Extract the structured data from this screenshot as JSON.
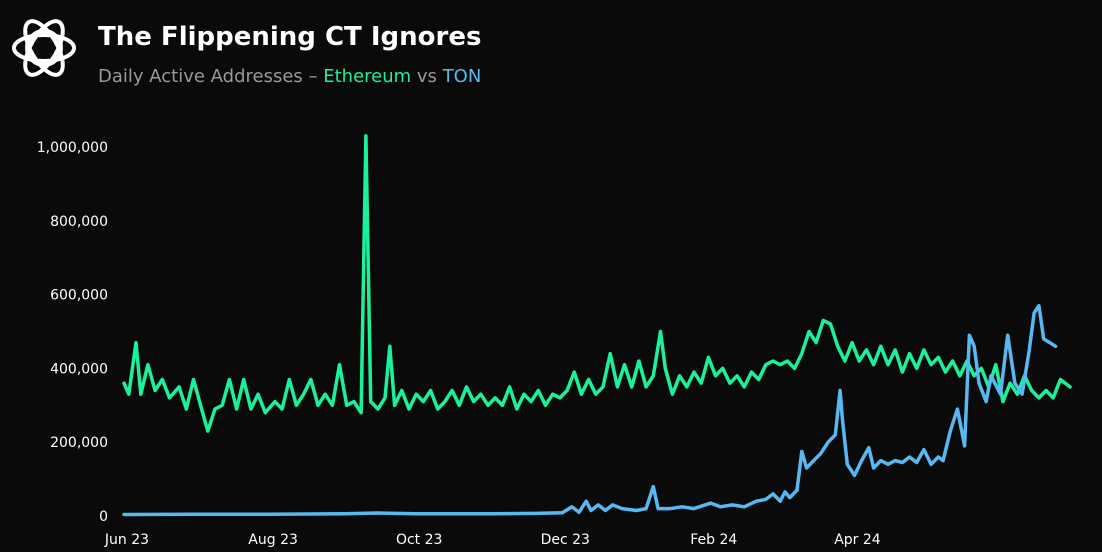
{
  "header": {
    "title": "The Flippening CT Ignores",
    "subtitle_prefix": "Daily Active Addresses – ",
    "subtitle_series_a": "Ethereum",
    "subtitle_mid": " vs ",
    "subtitle_series_b": "TON"
  },
  "colors": {
    "background": "#0a0a0a",
    "ethereum": "#19f29a",
    "ton": "#58b9f2",
    "subtitle_gray": "#9a9a9a",
    "text": "#ffffff"
  },
  "icons": {
    "logo": "knot-logo-icon"
  },
  "chart_data": {
    "type": "line",
    "title": "The Flippening CT Ignores",
    "subtitle": "Daily Active Addresses – Ethereum vs TON",
    "xlabel": "",
    "ylabel": "",
    "x_range": [
      "2023-06-01",
      "2024-06-30"
    ],
    "ylim": [
      0,
      1000000
    ],
    "y_ticks": [
      0,
      200000,
      400000,
      600000,
      800000,
      1000000
    ],
    "y_tick_labels": [
      "0",
      "200,000",
      "400,000",
      "600,000",
      "800,000",
      "1,000,000"
    ],
    "x_ticks": [
      "2023-06-01",
      "2023-08-01",
      "2023-10-01",
      "2023-12-01",
      "2024-02-01",
      "2024-04-01"
    ],
    "x_tick_labels": [
      "Jun 23",
      "Aug 23",
      "Oct 23",
      "Dec 23",
      "Feb 24",
      "Apr 24"
    ],
    "grid": false,
    "legend": "none",
    "series": [
      {
        "name": "Ethereum",
        "color": "#19f29a",
        "points": [
          [
            "2023-06-01",
            360000
          ],
          [
            "2023-06-03",
            330000
          ],
          [
            "2023-06-06",
            470000
          ],
          [
            "2023-06-08",
            330000
          ],
          [
            "2023-06-11",
            410000
          ],
          [
            "2023-06-14",
            340000
          ],
          [
            "2023-06-17",
            370000
          ],
          [
            "2023-06-20",
            320000
          ],
          [
            "2023-06-24",
            350000
          ],
          [
            "2023-06-27",
            290000
          ],
          [
            "2023-06-30",
            370000
          ],
          [
            "2023-07-03",
            300000
          ],
          [
            "2023-07-06",
            230000
          ],
          [
            "2023-07-09",
            290000
          ],
          [
            "2023-07-12",
            300000
          ],
          [
            "2023-07-15",
            370000
          ],
          [
            "2023-07-18",
            290000
          ],
          [
            "2023-07-21",
            370000
          ],
          [
            "2023-07-24",
            290000
          ],
          [
            "2023-07-27",
            330000
          ],
          [
            "2023-07-30",
            280000
          ],
          [
            "2023-08-03",
            310000
          ],
          [
            "2023-08-06",
            290000
          ],
          [
            "2023-08-09",
            370000
          ],
          [
            "2023-08-12",
            300000
          ],
          [
            "2023-08-15",
            330000
          ],
          [
            "2023-08-18",
            370000
          ],
          [
            "2023-08-21",
            300000
          ],
          [
            "2023-08-24",
            330000
          ],
          [
            "2023-08-27",
            300000
          ],
          [
            "2023-08-30",
            410000
          ],
          [
            "2023-09-02",
            300000
          ],
          [
            "2023-09-05",
            310000
          ],
          [
            "2023-09-08",
            280000
          ],
          [
            "2023-09-10",
            1030000
          ],
          [
            "2023-09-12",
            310000
          ],
          [
            "2023-09-15",
            290000
          ],
          [
            "2023-09-18",
            320000
          ],
          [
            "2023-09-20",
            460000
          ],
          [
            "2023-09-22",
            300000
          ],
          [
            "2023-09-25",
            340000
          ],
          [
            "2023-09-28",
            290000
          ],
          [
            "2023-10-01",
            330000
          ],
          [
            "2023-10-04",
            310000
          ],
          [
            "2023-10-07",
            340000
          ],
          [
            "2023-10-10",
            290000
          ],
          [
            "2023-10-13",
            310000
          ],
          [
            "2023-10-16",
            340000
          ],
          [
            "2023-10-19",
            300000
          ],
          [
            "2023-10-22",
            350000
          ],
          [
            "2023-10-25",
            310000
          ],
          [
            "2023-10-28",
            330000
          ],
          [
            "2023-10-31",
            300000
          ],
          [
            "2023-11-03",
            320000
          ],
          [
            "2023-11-06",
            300000
          ],
          [
            "2023-11-09",
            350000
          ],
          [
            "2023-11-12",
            290000
          ],
          [
            "2023-11-15",
            330000
          ],
          [
            "2023-11-18",
            310000
          ],
          [
            "2023-11-21",
            340000
          ],
          [
            "2023-11-24",
            300000
          ],
          [
            "2023-11-27",
            330000
          ],
          [
            "2023-11-30",
            320000
          ],
          [
            "2023-12-03",
            340000
          ],
          [
            "2023-12-06",
            390000
          ],
          [
            "2023-12-09",
            330000
          ],
          [
            "2023-12-12",
            370000
          ],
          [
            "2023-12-15",
            330000
          ],
          [
            "2023-12-18",
            350000
          ],
          [
            "2023-12-21",
            440000
          ],
          [
            "2023-12-24",
            350000
          ],
          [
            "2023-12-27",
            410000
          ],
          [
            "2023-12-30",
            350000
          ],
          [
            "2024-01-02",
            420000
          ],
          [
            "2024-01-05",
            350000
          ],
          [
            "2024-01-08",
            380000
          ],
          [
            "2024-01-11",
            500000
          ],
          [
            "2024-01-13",
            400000
          ],
          [
            "2024-01-16",
            330000
          ],
          [
            "2024-01-19",
            380000
          ],
          [
            "2024-01-22",
            350000
          ],
          [
            "2024-01-25",
            390000
          ],
          [
            "2024-01-28",
            360000
          ],
          [
            "2024-01-31",
            430000
          ],
          [
            "2024-02-03",
            380000
          ],
          [
            "2024-02-06",
            400000
          ],
          [
            "2024-02-09",
            360000
          ],
          [
            "2024-02-12",
            380000
          ],
          [
            "2024-02-15",
            350000
          ],
          [
            "2024-02-18",
            390000
          ],
          [
            "2024-02-21",
            370000
          ],
          [
            "2024-02-24",
            410000
          ],
          [
            "2024-02-27",
            420000
          ],
          [
            "2024-03-01",
            410000
          ],
          [
            "2024-03-04",
            420000
          ],
          [
            "2024-03-07",
            400000
          ],
          [
            "2024-03-10",
            440000
          ],
          [
            "2024-03-13",
            500000
          ],
          [
            "2024-03-16",
            470000
          ],
          [
            "2024-03-19",
            530000
          ],
          [
            "2024-03-22",
            520000
          ],
          [
            "2024-03-25",
            460000
          ],
          [
            "2024-03-28",
            420000
          ],
          [
            "2024-03-31",
            470000
          ],
          [
            "2024-04-03",
            420000
          ],
          [
            "2024-04-06",
            450000
          ],
          [
            "2024-04-09",
            410000
          ],
          [
            "2024-04-12",
            460000
          ],
          [
            "2024-04-15",
            410000
          ],
          [
            "2024-04-18",
            450000
          ],
          [
            "2024-04-21",
            390000
          ],
          [
            "2024-04-24",
            440000
          ],
          [
            "2024-04-27",
            400000
          ],
          [
            "2024-04-30",
            450000
          ],
          [
            "2024-05-03",
            410000
          ],
          [
            "2024-05-06",
            430000
          ],
          [
            "2024-05-09",
            390000
          ],
          [
            "2024-05-12",
            420000
          ],
          [
            "2024-05-15",
            380000
          ],
          [
            "2024-05-18",
            420000
          ],
          [
            "2024-05-21",
            380000
          ],
          [
            "2024-05-24",
            400000
          ],
          [
            "2024-05-27",
            350000
          ],
          [
            "2024-05-30",
            410000
          ],
          [
            "2024-06-02",
            310000
          ],
          [
            "2024-06-05",
            360000
          ],
          [
            "2024-06-08",
            330000
          ],
          [
            "2024-06-11",
            380000
          ],
          [
            "2024-06-14",
            340000
          ],
          [
            "2024-06-17",
            320000
          ],
          [
            "2024-06-20",
            340000
          ],
          [
            "2024-06-23",
            320000
          ],
          [
            "2024-06-26",
            370000
          ],
          [
            "2024-06-30",
            350000
          ]
        ]
      },
      {
        "name": "TON",
        "color": "#58b9f2",
        "points": [
          [
            "2023-06-01",
            4000
          ],
          [
            "2023-07-01",
            5000
          ],
          [
            "2023-08-01",
            5000
          ],
          [
            "2023-09-01",
            6000
          ],
          [
            "2023-09-15",
            8000
          ],
          [
            "2023-10-01",
            6000
          ],
          [
            "2023-11-01",
            6000
          ],
          [
            "2023-11-20",
            7000
          ],
          [
            "2023-12-01",
            9000
          ],
          [
            "2023-12-05",
            25000
          ],
          [
            "2023-12-08",
            10000
          ],
          [
            "2023-12-11",
            40000
          ],
          [
            "2023-12-13",
            15000
          ],
          [
            "2023-12-16",
            30000
          ],
          [
            "2023-12-19",
            15000
          ],
          [
            "2023-12-22",
            30000
          ],
          [
            "2023-12-26",
            20000
          ],
          [
            "2024-01-01",
            15000
          ],
          [
            "2024-01-05",
            20000
          ],
          [
            "2024-01-08",
            80000
          ],
          [
            "2024-01-10",
            20000
          ],
          [
            "2024-01-15",
            20000
          ],
          [
            "2024-01-20",
            25000
          ],
          [
            "2024-01-25",
            20000
          ],
          [
            "2024-02-01",
            35000
          ],
          [
            "2024-02-05",
            25000
          ],
          [
            "2024-02-10",
            30000
          ],
          [
            "2024-02-15",
            25000
          ],
          [
            "2024-02-20",
            40000
          ],
          [
            "2024-02-24",
            45000
          ],
          [
            "2024-02-27",
            60000
          ],
          [
            "2024-03-01",
            40000
          ],
          [
            "2024-03-03",
            65000
          ],
          [
            "2024-03-05",
            50000
          ],
          [
            "2024-03-08",
            70000
          ],
          [
            "2024-03-10",
            175000
          ],
          [
            "2024-03-12",
            130000
          ],
          [
            "2024-03-15",
            150000
          ],
          [
            "2024-03-18",
            170000
          ],
          [
            "2024-03-21",
            200000
          ],
          [
            "2024-03-24",
            220000
          ],
          [
            "2024-03-26",
            340000
          ],
          [
            "2024-03-27",
            260000
          ],
          [
            "2024-03-29",
            140000
          ],
          [
            "2024-04-01",
            110000
          ],
          [
            "2024-04-04",
            150000
          ],
          [
            "2024-04-07",
            185000
          ],
          [
            "2024-04-09",
            130000
          ],
          [
            "2024-04-12",
            150000
          ],
          [
            "2024-04-15",
            140000
          ],
          [
            "2024-04-18",
            150000
          ],
          [
            "2024-04-21",
            145000
          ],
          [
            "2024-04-24",
            160000
          ],
          [
            "2024-04-27",
            145000
          ],
          [
            "2024-04-30",
            180000
          ],
          [
            "2024-05-03",
            140000
          ],
          [
            "2024-05-06",
            160000
          ],
          [
            "2024-05-08",
            150000
          ],
          [
            "2024-05-11",
            230000
          ],
          [
            "2024-05-14",
            290000
          ],
          [
            "2024-05-17",
            190000
          ],
          [
            "2024-05-19",
            490000
          ],
          [
            "2024-05-21",
            460000
          ],
          [
            "2024-05-23",
            360000
          ],
          [
            "2024-05-26",
            310000
          ],
          [
            "2024-05-28",
            380000
          ],
          [
            "2024-06-01",
            330000
          ],
          [
            "2024-06-04",
            490000
          ],
          [
            "2024-06-07",
            360000
          ],
          [
            "2024-06-10",
            330000
          ],
          [
            "2024-06-13",
            450000
          ],
          [
            "2024-06-15",
            550000
          ],
          [
            "2024-06-17",
            570000
          ],
          [
            "2024-06-19",
            480000
          ],
          [
            "2024-06-24",
            460000
          ]
        ]
      }
    ]
  }
}
